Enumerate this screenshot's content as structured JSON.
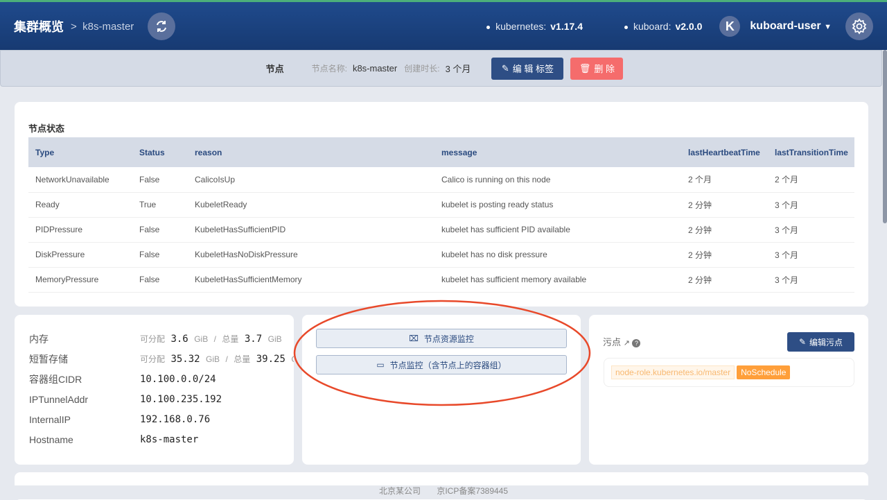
{
  "header": {
    "title": "集群概览",
    "separator": ">",
    "crumb": "k8s-master",
    "kubernetes_label": "kubernetes:",
    "kubernetes_version": "v1.17.4",
    "kuboard_label": "kuboard:",
    "kuboard_version": "v2.0.0",
    "avatar_letter": "K",
    "user": "kuboard-user"
  },
  "nodebar": {
    "type": "节点",
    "name_label": "节点名称:",
    "name": "k8s-master",
    "age_label": "创建时长:",
    "age": "3 个月",
    "edit_labels": "编 辑 标签",
    "delete": "删 除"
  },
  "conditions": {
    "title": "节点状态",
    "columns": [
      "Type",
      "Status",
      "reason",
      "message",
      "lastHeartbeatTime",
      "lastTransitionTime"
    ],
    "rows": [
      [
        "NetworkUnavailable",
        "False",
        "CalicoIsUp",
        "Calico is running on this node",
        "2 个月",
        "2 个月"
      ],
      [
        "Ready",
        "True",
        "KubeletReady",
        "kubelet is posting ready status",
        "2 分钟",
        "3 个月"
      ],
      [
        "PIDPressure",
        "False",
        "KubeletHasSufficientPID",
        "kubelet has sufficient PID available",
        "2 分钟",
        "3 个月"
      ],
      [
        "DiskPressure",
        "False",
        "KubeletHasNoDiskPressure",
        "kubelet has no disk pressure",
        "2 分钟",
        "3 个月"
      ],
      [
        "MemoryPressure",
        "False",
        "KubeletHasSufficientMemory",
        "kubelet has sufficient memory available",
        "2 分钟",
        "3 个月"
      ]
    ]
  },
  "info": {
    "memory": {
      "label": "内存",
      "alloc_label": "可分配",
      "alloc": "3.6",
      "unit": "GiB",
      "sep": "/",
      "total_label": "总量",
      "total": "3.7"
    },
    "storage": {
      "label": "短暂存储",
      "alloc_label": "可分配",
      "alloc": "35.32",
      "unit": "GiB",
      "sep": "/",
      "total_label": "总量",
      "total": "39.25"
    },
    "items": [
      {
        "label": "容器组CIDR",
        "value": "10.100.0.0/24"
      },
      {
        "label": "IPTunnelAddr",
        "value": "10.100.235.192"
      },
      {
        "label": "InternalIP",
        "value": "192.168.0.76"
      },
      {
        "label": "Hostname",
        "value": "k8s-master"
      }
    ]
  },
  "monitor": {
    "resource": "节点资源监控",
    "pods": "节点监控（含节点上的容器组）"
  },
  "taints": {
    "title": "污点",
    "edit": "编辑污点",
    "key": "node-role.kubernetes.io/master",
    "effect": "NoSchedule"
  },
  "footer": {
    "company": "北京某公司",
    "icp": "京ICP备案7389445"
  },
  "colors": {
    "header": "#1f4a8c",
    "primary": "#2e4e85",
    "danger": "#f56c6c",
    "warning": "#ff9f3a",
    "annotation": "#e8492a"
  }
}
